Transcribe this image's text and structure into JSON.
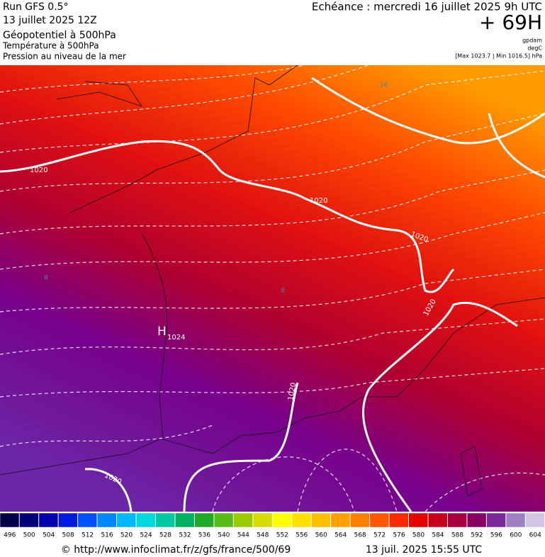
{
  "header": {
    "run": "Run GFS 0.5°",
    "date": "13 juillet 2025 12Z",
    "field1": "Géopotentiel à 500hPa",
    "field2": "Température à 500hPa",
    "field3": "Pression au niveau de la mer",
    "echeance": "Echéance : mercredi 16 juillet 2025 9h UTC",
    "lead": "+ 69H",
    "unit1": "gpdam",
    "unit2": "degC",
    "unit3": "[Max 1023.7 | Min 1016.5] hPa"
  },
  "map": {
    "labels": [
      {
        "text": "1020"
      },
      {
        "text": "1020"
      },
      {
        "text": "1020"
      },
      {
        "text": "1020"
      },
      {
        "text": "1020"
      },
      {
        "text": "1020"
      },
      {
        "text": "H"
      },
      {
        "text": "1024"
      },
      {
        "text": "16"
      },
      {
        "text": "8"
      },
      {
        "text": "8"
      }
    ]
  },
  "colorbar": {
    "labels": [
      496,
      500,
      504,
      508,
      512,
      516,
      520,
      524,
      528,
      532,
      536,
      540,
      544,
      548,
      552,
      556,
      560,
      564,
      568,
      572,
      576,
      580,
      584,
      588,
      592,
      596,
      600,
      604
    ],
    "colors": [
      "#00004a",
      "#000078",
      "#0000b0",
      "#0018e0",
      "#0050ff",
      "#0088ff",
      "#00b8ff",
      "#00d8e0",
      "#00c8a0",
      "#00b060",
      "#20a828",
      "#58bc18",
      "#98cc00",
      "#d8dc00",
      "#ffff00",
      "#ffe000",
      "#ffc000",
      "#ffa000",
      "#ff8000",
      "#ff5800",
      "#ff2800",
      "#e80000",
      "#c8001c",
      "#a8003c",
      "#880060",
      "#7a2898",
      "#a080c0",
      "#d4c4e4"
    ]
  },
  "footer": {
    "url": "© http://www.infoclimat.fr/z/gfs/france/500/69",
    "stamp": "13 juil. 2025 15:55 UTC"
  }
}
